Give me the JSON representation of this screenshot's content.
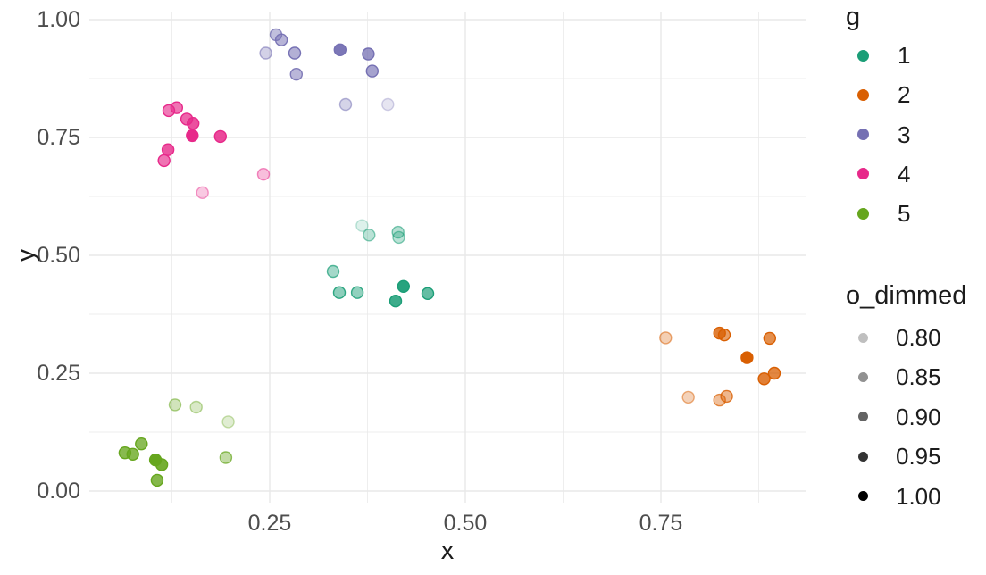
{
  "chart_data": {
    "type": "scatter",
    "xlabel": "x",
    "ylabel": "y",
    "x_ticks": {
      "values": [
        0.25,
        0.5,
        0.75
      ],
      "labels": [
        "0.25",
        "0.50",
        "0.75"
      ]
    },
    "y_ticks": {
      "values": [
        0.0,
        0.25,
        0.5,
        0.75,
        1.0
      ],
      "labels": [
        "0.00",
        "0.25",
        "0.50",
        "0.75",
        "1.00"
      ]
    },
    "x_minor": [
      0.125,
      0.375,
      0.625,
      0.875
    ],
    "y_minor": [
      0.125,
      0.375,
      0.625,
      0.875
    ],
    "xlim": [
      0.016,
      0.936
    ],
    "ylim": [
      -0.027,
      1.017
    ],
    "grid": "major+minor",
    "legend_position": "right",
    "series": [
      {
        "name": "1",
        "color": "#1B9E77",
        "points": [
          {
            "x": 0.368,
            "y": 0.563,
            "o": 0.15
          },
          {
            "x": 0.377,
            "y": 0.543,
            "o": 0.3
          },
          {
            "x": 0.414,
            "y": 0.549,
            "o": 0.33
          },
          {
            "x": 0.415,
            "y": 0.538,
            "o": 0.3
          },
          {
            "x": 0.331,
            "y": 0.466,
            "o": 0.4
          },
          {
            "x": 0.339,
            "y": 0.421,
            "o": 0.5
          },
          {
            "x": 0.362,
            "y": 0.421,
            "o": 0.48
          },
          {
            "x": 0.421,
            "y": 0.434,
            "o": 0.95
          },
          {
            "x": 0.411,
            "y": 0.403,
            "o": 0.85
          },
          {
            "x": 0.452,
            "y": 0.419,
            "o": 0.68
          }
        ]
      },
      {
        "name": "2",
        "color": "#D95F02",
        "points": [
          {
            "x": 0.756,
            "y": 0.325,
            "o": 0.3
          },
          {
            "x": 0.825,
            "y": 0.335,
            "o": 0.8
          },
          {
            "x": 0.831,
            "y": 0.331,
            "o": 0.6
          },
          {
            "x": 0.889,
            "y": 0.324,
            "o": 0.7
          },
          {
            "x": 0.86,
            "y": 0.283,
            "o": 1.0
          },
          {
            "x": 0.895,
            "y": 0.25,
            "o": 0.75
          },
          {
            "x": 0.882,
            "y": 0.238,
            "o": 0.8
          },
          {
            "x": 0.785,
            "y": 0.199,
            "o": 0.28
          },
          {
            "x": 0.825,
            "y": 0.193,
            "o": 0.4
          },
          {
            "x": 0.834,
            "y": 0.201,
            "o": 0.45
          }
        ]
      },
      {
        "name": "3",
        "color": "#7570B3",
        "points": [
          {
            "x": 0.258,
            "y": 0.968,
            "o": 0.45
          },
          {
            "x": 0.265,
            "y": 0.957,
            "o": 0.52
          },
          {
            "x": 0.245,
            "y": 0.929,
            "o": 0.32
          },
          {
            "x": 0.282,
            "y": 0.929,
            "o": 0.55
          },
          {
            "x": 0.34,
            "y": 0.936,
            "o": 0.95
          },
          {
            "x": 0.376,
            "y": 0.927,
            "o": 0.75
          },
          {
            "x": 0.284,
            "y": 0.884,
            "o": 0.5
          },
          {
            "x": 0.381,
            "y": 0.891,
            "o": 0.65
          },
          {
            "x": 0.347,
            "y": 0.82,
            "o": 0.3
          },
          {
            "x": 0.401,
            "y": 0.82,
            "o": 0.18
          }
        ]
      },
      {
        "name": "4",
        "color": "#E7298A",
        "points": [
          {
            "x": 0.121,
            "y": 0.807,
            "o": 0.62
          },
          {
            "x": 0.131,
            "y": 0.813,
            "o": 0.65
          },
          {
            "x": 0.144,
            "y": 0.789,
            "o": 0.72
          },
          {
            "x": 0.152,
            "y": 0.78,
            "o": 0.82
          },
          {
            "x": 0.151,
            "y": 0.754,
            "o": 1.0
          },
          {
            "x": 0.187,
            "y": 0.752,
            "o": 0.85
          },
          {
            "x": 0.12,
            "y": 0.724,
            "o": 0.8
          },
          {
            "x": 0.115,
            "y": 0.701,
            "o": 0.65
          },
          {
            "x": 0.242,
            "y": 0.672,
            "o": 0.3
          },
          {
            "x": 0.164,
            "y": 0.633,
            "o": 0.25
          }
        ]
      },
      {
        "name": "5",
        "color": "#66A61E",
        "points": [
          {
            "x": 0.129,
            "y": 0.183,
            "o": 0.3
          },
          {
            "x": 0.156,
            "y": 0.178,
            "o": 0.25
          },
          {
            "x": 0.197,
            "y": 0.147,
            "o": 0.2
          },
          {
            "x": 0.086,
            "y": 0.1,
            "o": 0.75
          },
          {
            "x": 0.065,
            "y": 0.081,
            "o": 0.78
          },
          {
            "x": 0.075,
            "y": 0.078,
            "o": 0.78
          },
          {
            "x": 0.104,
            "y": 0.066,
            "o": 1.0
          },
          {
            "x": 0.112,
            "y": 0.056,
            "o": 0.9
          },
          {
            "x": 0.106,
            "y": 0.023,
            "o": 0.8
          },
          {
            "x": 0.194,
            "y": 0.071,
            "o": 0.4
          }
        ]
      }
    ]
  },
  "legends": {
    "color": {
      "title": "g",
      "items": [
        {
          "label": "1",
          "color": "#1B9E77"
        },
        {
          "label": "2",
          "color": "#D95F02"
        },
        {
          "label": "3",
          "color": "#7570B3"
        },
        {
          "label": "4",
          "color": "#E7298A"
        },
        {
          "label": "5",
          "color": "#66A61E"
        }
      ]
    },
    "alpha": {
      "title": "o_dimmed",
      "items": [
        {
          "label": "0.80",
          "opacity": 0.25
        },
        {
          "label": "0.85",
          "opacity": 0.43
        },
        {
          "label": "0.90",
          "opacity": 0.61
        },
        {
          "label": "0.95",
          "opacity": 0.8
        },
        {
          "label": "1.00",
          "opacity": 1.0
        }
      ]
    }
  },
  "colors": {
    "background": "#FFFFFF",
    "grid": "#E8E8E8",
    "tick_text": "#4D4D4D",
    "title_text": "#1C1C1C"
  }
}
